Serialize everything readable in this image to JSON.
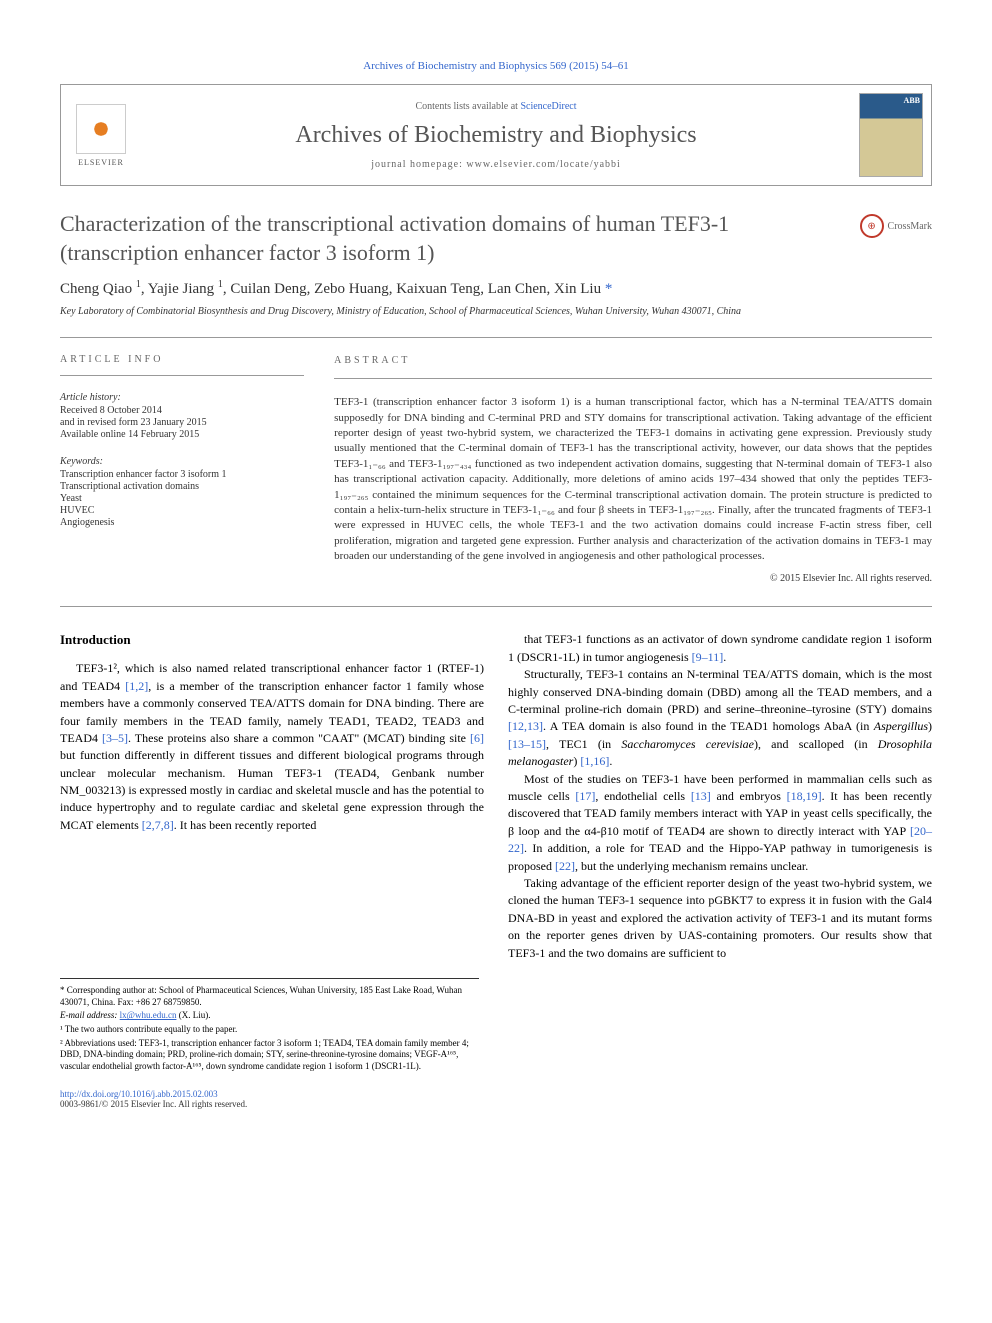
{
  "citation": "Archives of Biochemistry and Biophysics 569 (2015) 54–61",
  "header": {
    "contents_prefix": "Contents lists available at ",
    "contents_link": "ScienceDirect",
    "journal_name": "Archives of Biochemistry and Biophysics",
    "homepage_prefix": "journal homepage: ",
    "homepage": "www.elsevier.com/locate/yabbi",
    "elsevier": "ELSEVIER",
    "cover_abb": "ABB"
  },
  "title": "Characterization of the transcriptional activation domains of human TEF3-1 (transcription enhancer factor 3 isoform 1)",
  "crossmark": "CrossMark",
  "authors_html": "Cheng Qiao <sup>1</sup>, Yajie Jiang <sup>1</sup>, Cuilan Deng, Zebo Huang, Kaixuan Teng, Lan Chen, Xin Liu <span class='author-link'>*</span>",
  "affiliation": "Key Laboratory of Combinatorial Biosynthesis and Drug Discovery, Ministry of Education, School of Pharmaceutical Sciences, Wuhan University, Wuhan 430071, China",
  "article_info_label": "ARTICLE INFO",
  "abstract_label": "ABSTRACT",
  "history": {
    "label": "Article history:",
    "received": "Received 8 October 2014",
    "revised": "and in revised form 23 January 2015",
    "online": "Available online 14 February 2015"
  },
  "keywords": {
    "label": "Keywords:",
    "items": [
      "Transcription enhancer factor 3 isoform 1",
      "Transcriptional activation domains",
      "Yeast",
      "HUVEC",
      "Angiogenesis"
    ]
  },
  "abstract": "TEF3-1 (transcription enhancer factor 3 isoform 1) is a human transcriptional factor, which has a N-terminal TEA/ATTS domain supposedly for DNA binding and C-terminal PRD and STY domains for transcriptional activation. Taking advantage of the efficient reporter design of yeast two-hybrid system, we characterized the TEF3-1 domains in activating gene expression. Previously study usually mentioned that the C-terminal domain of TEF3-1 has the transcriptional activity, however, our data shows that the peptides TEF3-1₁₋₆₆ and TEF3-1₁₉₇₋₄₃₄ functioned as two independent activation domains, suggesting that N-terminal domain of TEF3-1 also has transcriptional activation capacity. Additionally, more deletions of amino acids 197–434 showed that only the peptides TEF3-1₁₉₇₋₂₆₅ contained the minimum sequences for the C-terminal transcriptional activation domain. The protein structure is predicted to contain a helix-turn-helix structure in TEF3-1₁₋₆₆ and four β sheets in TEF3-1₁₉₇₋₂₆₅. Finally, after the truncated fragments of TEF3-1 were expressed in HUVEC cells, the whole TEF3-1 and the two activation domains could increase F-actin stress fiber, cell proliferation, migration and targeted gene expression. Further analysis and characterization of the activation domains in TEF3-1 may broaden our understanding of the gene involved in angiogenesis and other pathological processes.",
  "copyright": "© 2015 Elsevier Inc. All rights reserved.",
  "intro_heading": "Introduction",
  "intro_p1": "TEF3-1², which is also named related transcriptional enhancer factor 1 (RTEF-1) and TEAD4 [1,2], is a member of the transcription enhancer factor 1 family whose members have a commonly conserved TEA/ATTS domain for DNA binding. There are four family members in the TEAD family, namely TEAD1, TEAD2, TEAD3 and TEAD4 [3–5]. These proteins also share a common \"CAAT\" (MCAT) binding site [6] but function differently in different tissues and different biological programs through unclear molecular mechanism. Human TEF3-1 (TEAD4, Genbank number NM_003213) is expressed mostly in cardiac and skeletal muscle and has the potential to induce hypertrophy and to regulate cardiac and skeletal gene expression through the MCAT elements [2,7,8]. It has been recently reported",
  "intro_p2": "that TEF3-1 functions as an activator of down syndrome candidate region 1 isoform 1 (DSCR1-1L) in tumor angiogenesis [9–11].",
  "intro_p3": "Structurally, TEF3-1 contains an N-terminal TEA/ATTS domain, which is the most highly conserved DNA-binding domain (DBD) among all the TEAD members, and a C-terminal proline-rich domain (PRD) and serine–threonine–tyrosine (STY) domains [12,13]. A TEA domain is also found in the TEAD1 homologs AbaA (in Aspergillus) [13–15], TEC1 (in Saccharomyces cerevisiae), and scalloped (in Drosophila melanogaster) [1,16].",
  "intro_p4": "Most of the studies on TEF3-1 have been performed in mammalian cells such as muscle cells [17], endothelial cells [13] and embryos [18,19]. It has been recently discovered that TEAD family members interact with YAP in yeast cells specifically, the β loop and the α4-β10 motif of TEAD4 are shown to directly interact with YAP [20–22]. In addition, a role for TEAD and the Hippo-YAP pathway in tumorigenesis is proposed [22], but the underlying mechanism remains unclear.",
  "intro_p5": "Taking advantage of the efficient reporter design of the yeast two-hybrid system, we cloned the human TEF3-1 sequence into pGBKT7 to express it in fusion with the Gal4 DNA-BD in yeast and explored the activation activity of TEF3-1 and its mutant forms on the reporter genes driven by UAS-containing promoters. Our results show that TEF3-1 and the two domains are sufficient to",
  "footnotes": {
    "corresponding": "* Corresponding author at: School of Pharmaceutical Sciences, Wuhan University, 185 East Lake Road, Wuhan 430071, China. Fax: +86 27 68759850.",
    "email_label": "E-mail address: ",
    "email": "lx@whu.edu.cn",
    "email_suffix": " (X. Liu).",
    "note1": "¹ The two authors contribute equally to the paper.",
    "note2": "² Abbreviations used: TEF3-1, transcription enhancer factor 3 isoform 1; TEAD4, TEA domain family member 4; DBD, DNA-binding domain; PRD, proline-rich domain; STY, serine-threonine-tyrosine domains; VEGF-A¹⁶⁵, vascular endothelial growth factor-A¹⁶⁵, down syndrome candidate region 1 isoform 1 (DSCR1-1L)."
  },
  "footer": {
    "doi": "http://dx.doi.org/10.1016/j.abb.2015.02.003",
    "issn": "0003-9861/© 2015 Elsevier Inc. All rights reserved."
  },
  "colors": {
    "link": "#3366cc",
    "text": "#000000",
    "heading_gray": "#555555",
    "border": "#999999"
  }
}
